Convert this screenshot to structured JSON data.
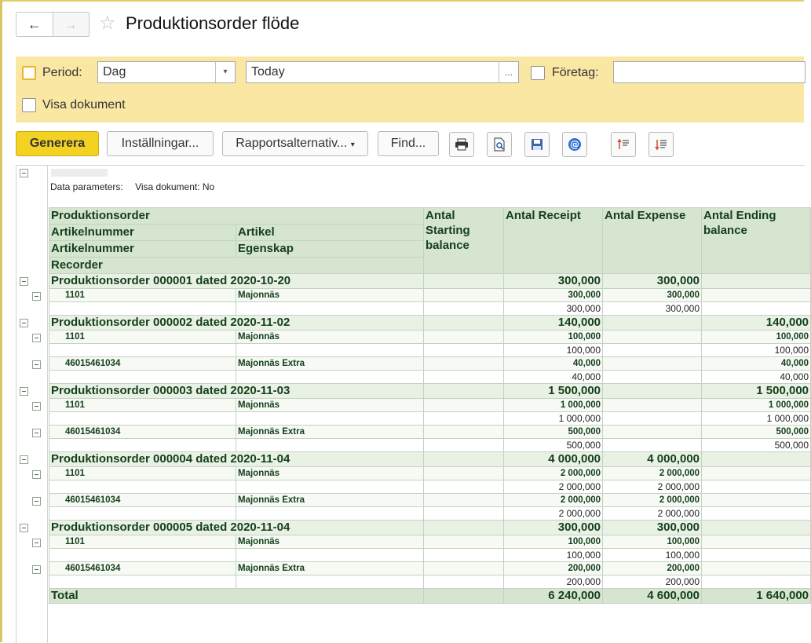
{
  "window": {
    "title": "Produktionsorder flöde",
    "back_glyph": "←",
    "forward_glyph": "→",
    "star_glyph": "☆"
  },
  "filters": {
    "period_label": "Period:",
    "period_type": "Dag",
    "period_value": "Today",
    "dropdown_glyph": "▾",
    "ellipsis_glyph": "...",
    "company_label": "Företag:",
    "company_value": "",
    "show_docs_label": "Visa dokument"
  },
  "toolbar": {
    "generate": "Generera",
    "settings": "Inställningar...",
    "report_options": "Rapportsalternativ...",
    "find": "Find..."
  },
  "report": {
    "param_label": "Data parameters:",
    "param_value": "Visa dokument: No",
    "headers": {
      "order": "Produktionsorder",
      "item_number_1": "Artikelnummer",
      "item": "Artikel",
      "item_number_2": "Artikelnummer",
      "property": "Egenskap",
      "recorder": "Recorder",
      "starting": "Antal Starting balance",
      "receipt": "Antal Receipt",
      "expense": "Antal Expense",
      "ending": "Antal Ending balance"
    },
    "orders": [
      {
        "title": "Produktionsorder 000001 dated 2020-10-20",
        "receipt": "300,000",
        "expense": "300,000",
        "ending": "",
        "items": [
          {
            "code": "1101",
            "name": "Majonnäs",
            "receipt": "300,000",
            "expense": "300,000",
            "ending": "",
            "d_receipt": "300,000",
            "d_expense": "300,000",
            "d_ending": ""
          }
        ]
      },
      {
        "title": "Produktionsorder 000002 dated 2020-11-02",
        "receipt": "140,000",
        "expense": "",
        "ending": "140,000",
        "items": [
          {
            "code": "1101",
            "name": "Majonnäs",
            "receipt": "100,000",
            "expense": "",
            "ending": "100,000",
            "d_receipt": "100,000",
            "d_expense": "",
            "d_ending": "100,000"
          },
          {
            "code": "46015461034",
            "name": "Majonnäs Extra",
            "receipt": "40,000",
            "expense": "",
            "ending": "40,000",
            "d_receipt": "40,000",
            "d_expense": "",
            "d_ending": "40,000"
          }
        ]
      },
      {
        "title": "Produktionsorder 000003 dated 2020-11-03",
        "receipt": "1 500,000",
        "expense": "",
        "ending": "1 500,000",
        "items": [
          {
            "code": "1101",
            "name": "Majonnäs",
            "receipt": "1 000,000",
            "expense": "",
            "ending": "1 000,000",
            "d_receipt": "1 000,000",
            "d_expense": "",
            "d_ending": "1 000,000"
          },
          {
            "code": "46015461034",
            "name": "Majonnäs Extra",
            "receipt": "500,000",
            "expense": "",
            "ending": "500,000",
            "d_receipt": "500,000",
            "d_expense": "",
            "d_ending": "500,000"
          }
        ]
      },
      {
        "title": "Produktionsorder 000004 dated 2020-11-04",
        "receipt": "4 000,000",
        "expense": "4 000,000",
        "ending": "",
        "items": [
          {
            "code": "1101",
            "name": "Majonnäs",
            "receipt": "2 000,000",
            "expense": "2 000,000",
            "ending": "",
            "d_receipt": "2 000,000",
            "d_expense": "2 000,000",
            "d_ending": ""
          },
          {
            "code": "46015461034",
            "name": "Majonnäs Extra",
            "receipt": "2 000,000",
            "expense": "2 000,000",
            "ending": "",
            "d_receipt": "2 000,000",
            "d_expense": "2 000,000",
            "d_ending": ""
          }
        ]
      },
      {
        "title": "Produktionsorder 000005 dated 2020-11-04",
        "receipt": "300,000",
        "expense": "300,000",
        "ending": "",
        "items": [
          {
            "code": "1101",
            "name": "Majonnäs",
            "receipt": "100,000",
            "expense": "100,000",
            "ending": "",
            "d_receipt": "100,000",
            "d_expense": "100,000",
            "d_ending": ""
          },
          {
            "code": "46015461034",
            "name": "Majonnäs Extra",
            "receipt": "200,000",
            "expense": "200,000",
            "ending": "",
            "d_receipt": "200,000",
            "d_expense": "200,000",
            "d_ending": ""
          }
        ]
      }
    ],
    "total": {
      "label": "Total",
      "receipt": "6 240,000",
      "expense": "4 600,000",
      "ending": "1 640,000"
    }
  },
  "colors": {
    "accent": "#f3d223",
    "filter_bg": "#fbe7a4",
    "header_bg": "#d6e5cf",
    "text_green": "#14401c"
  }
}
